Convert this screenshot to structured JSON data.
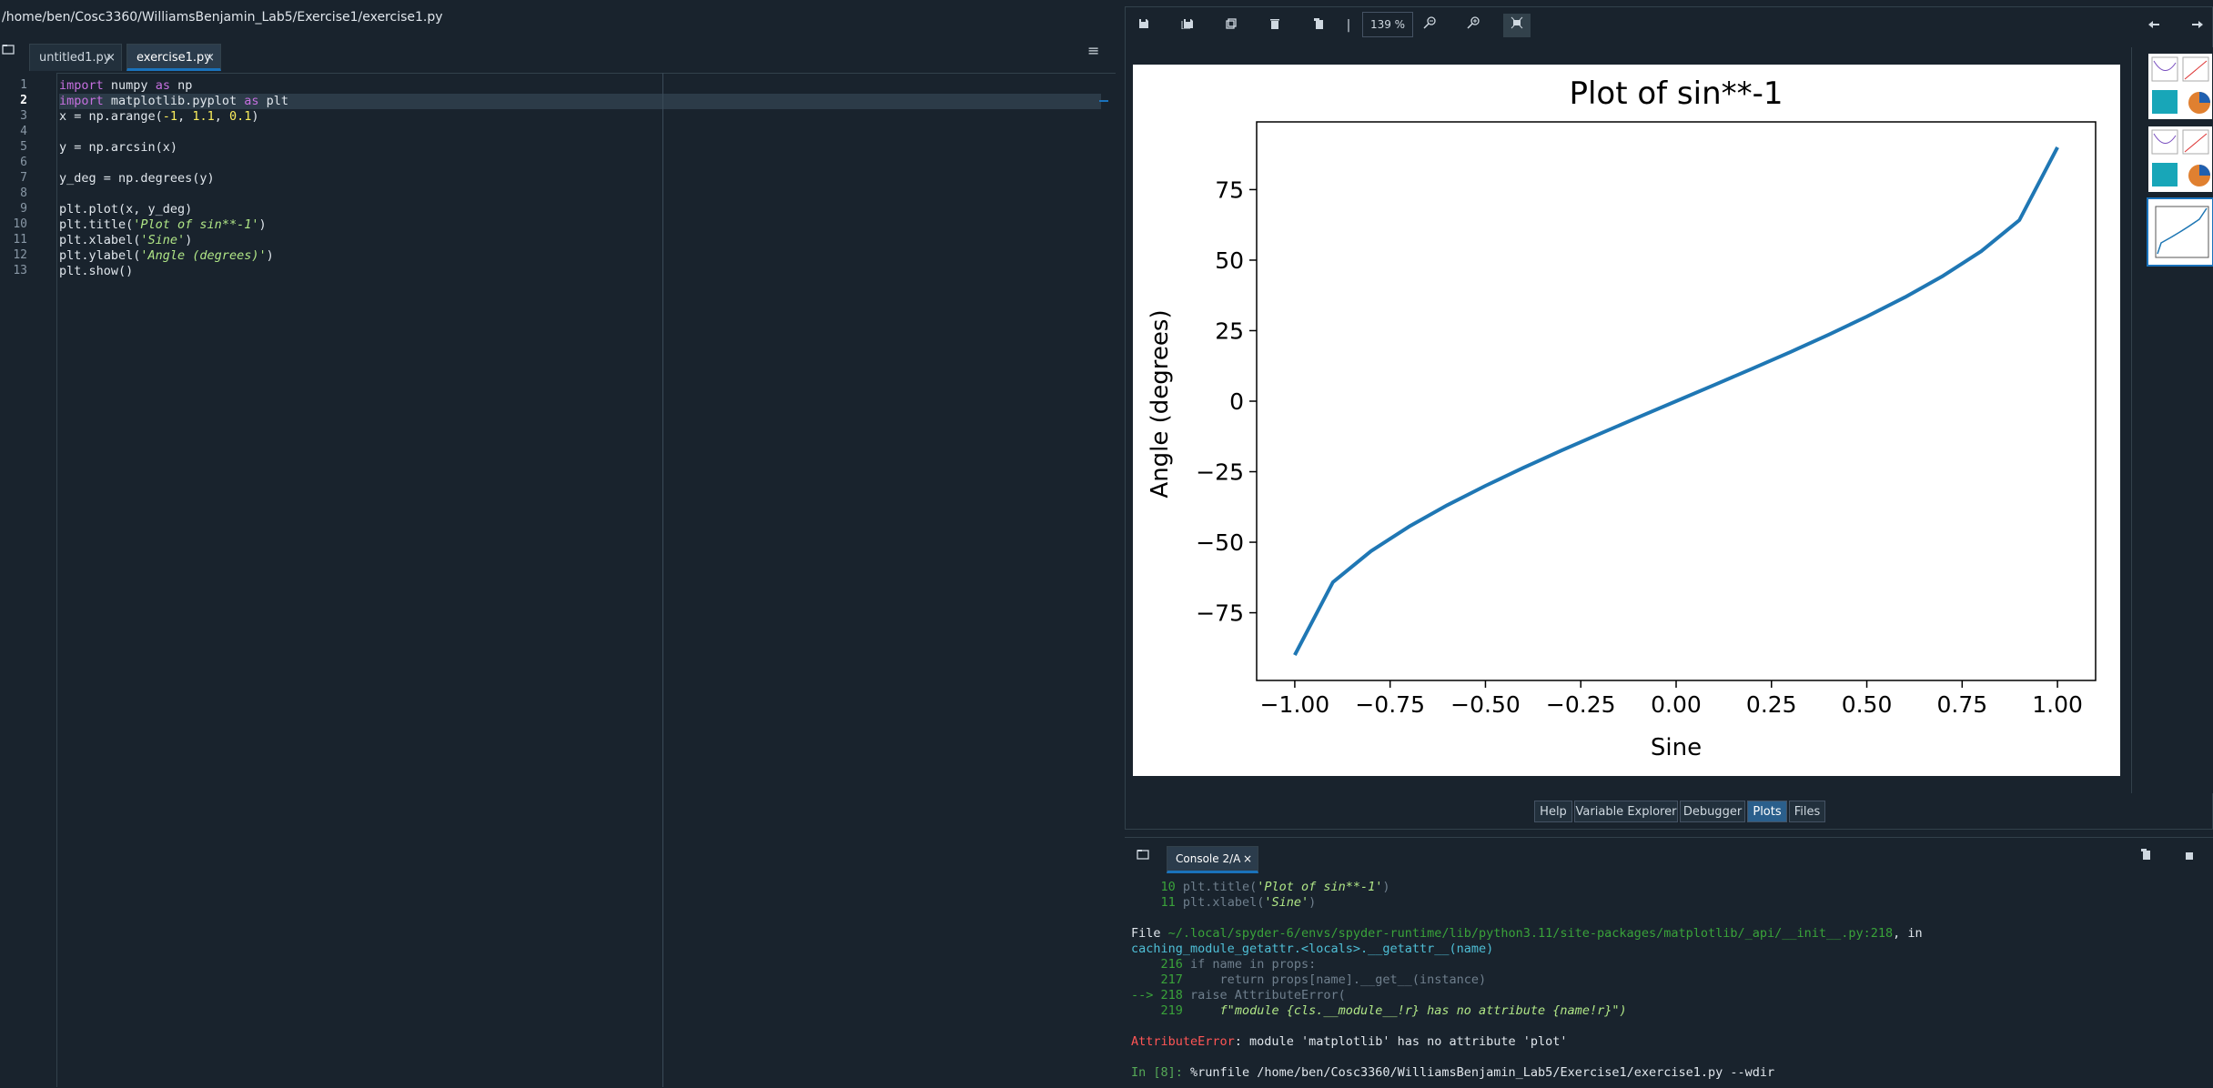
{
  "window": {
    "path": "/home/ben/Cosc3360/WilliamsBenjamin_Lab5/Exercise1/exercise1.py"
  },
  "editor": {
    "tabs": [
      {
        "label": "untitled1.py",
        "close": "×"
      },
      {
        "label": "exercise1.py",
        "close": "×"
      }
    ],
    "options_icon": "≡",
    "lines": [
      "import numpy as np",
      "import matplotlib.pyplot as plt",
      "x = np.arange(-1, 1.1, 0.1)",
      "",
      "y = np.arcsin(x)",
      "",
      "y_deg = np.degrees(y)",
      "",
      "plt.plot(x, y_deg)",
      "plt.title('Plot of sin**-1')",
      "plt.xlabel('Sine')",
      "plt.ylabel('Angle (degrees)')",
      "plt.show()"
    ],
    "line_numbers": [
      "1",
      "2",
      "3",
      "4",
      "5",
      "6",
      "7",
      "8",
      "9",
      "10",
      "11",
      "12",
      "13"
    ],
    "current_line": 2
  },
  "plots": {
    "zoom": "139 %",
    "toolbar_icons": [
      "save-icon",
      "save-all-icon",
      "copy-icon",
      "delete-icon",
      "delete-all-icon",
      "zoom-out-icon",
      "zoom-in-icon",
      "fit-icon"
    ],
    "nav_icons": [
      "previous-icon",
      "next-icon"
    ]
  },
  "chart_data": {
    "type": "line",
    "title": "Plot of sin**-1",
    "xlabel": "Sine",
    "ylabel": "Angle (degrees)",
    "xlim": [
      -1.1,
      1.1
    ],
    "ylim": [
      -99,
      99
    ],
    "xticks": [
      "−1.00",
      "−0.75",
      "−0.50",
      "−0.25",
      "0.00",
      "0.25",
      "0.50",
      "0.75",
      "1.00"
    ],
    "xtick_values": [
      -1.0,
      -0.75,
      -0.5,
      -0.25,
      0.0,
      0.25,
      0.5,
      0.75,
      1.0
    ],
    "yticks": [
      "−75",
      "−50",
      "−25",
      "0",
      "25",
      "50",
      "75"
    ],
    "ytick_values": [
      -75,
      -50,
      -25,
      0,
      25,
      50,
      75
    ],
    "line_color": "#1f77b4",
    "x": [
      -1.0,
      -0.9,
      -0.8,
      -0.7,
      -0.6,
      -0.5,
      -0.4,
      -0.3,
      -0.2,
      -0.1,
      0.0,
      0.1,
      0.2,
      0.3,
      0.4,
      0.5,
      0.6,
      0.7,
      0.8,
      0.9,
      1.0
    ],
    "y": [
      -90.0,
      -64.16,
      -53.13,
      -44.43,
      -36.87,
      -30.0,
      -23.58,
      -17.46,
      -11.54,
      -5.74,
      0.0,
      5.74,
      11.54,
      17.46,
      23.58,
      30.0,
      36.87,
      44.43,
      53.13,
      64.16,
      90.0
    ]
  },
  "pane_tabs": [
    "Help",
    "Variable Explorer",
    "Debugger",
    "Plots",
    "Files"
  ],
  "console": {
    "tab_label": "Console 2/A",
    "tab_close": "×",
    "ln10": "10",
    "code10a": "plt.title(",
    "code10b": "'Plot of sin**-1'",
    "code10c": ")",
    "ln11": "11",
    "code11a": "plt.xlabel(",
    "code11b": "'Sine'",
    "code11c": ")",
    "file_word": "File ",
    "file_path": "~/.local/spyder-6/envs/spyder-runtime/lib/python3.11/site-packages/matplotlib/_api/__init__.py:218",
    "file_in": ", in",
    "func": "caching_module_getattr.<locals>.__getattr__",
    "func_args": "(name)",
    "ln216": "216",
    "code216": "if name in props:",
    "ln217": "217",
    "code217": "    return props[name].__get__(instance)",
    "arrow218": "--> 218",
    "code218": " raise AttributeError(",
    "ln219": "219",
    "code219": "    f\"module {cls.__module__!r} has no attribute {name!r}\")",
    "err_name": "AttributeError",
    "err_msg": ": module 'matplotlib' has no attribute 'plot'",
    "prompt_in": "In [",
    "prompt_num": "8",
    "prompt_close": "]: ",
    "prompt_cmd": "%runfile",
    "prompt_rest": " /home/ben/Cosc3360/WilliamsBenjamin_Lab5/Exercise1/exercise1.py --wdir"
  }
}
